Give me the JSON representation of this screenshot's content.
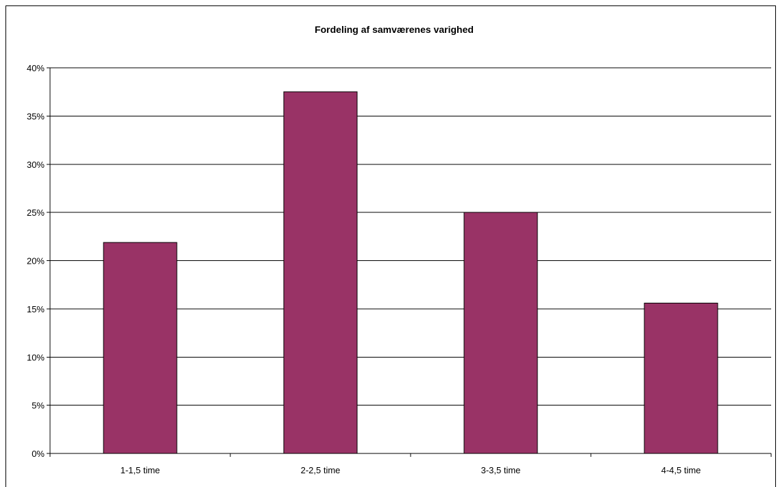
{
  "chart_data": {
    "type": "bar",
    "title": "Fordeling af samværenes varighed",
    "xlabel": "",
    "ylabel": "",
    "categories": [
      "1-1,5 time",
      "2-2,5 time",
      "3-3,5 time",
      "4-4,5 time"
    ],
    "values": [
      0.219,
      0.375,
      0.25,
      0.156
    ],
    "ylim": [
      0,
      0.4
    ],
    "y_ticks": [
      0,
      0.05,
      0.1,
      0.15,
      0.2,
      0.25,
      0.3,
      0.35,
      0.4
    ],
    "y_tick_labels": [
      "0%",
      "5%",
      "10%",
      "15%",
      "20%",
      "25%",
      "30%",
      "35%",
      "40%"
    ],
    "grid": true,
    "legend": "none",
    "bar_color": "#993366"
  }
}
